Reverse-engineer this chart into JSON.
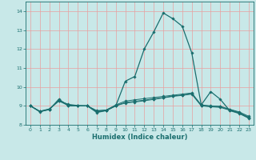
{
  "xlabel": "Humidex (Indice chaleur)",
  "background_color": "#c8e8e8",
  "line_color": "#1a6e6e",
  "grid_color": "#e8a0a0",
  "xlim": [
    -0.5,
    23.5
  ],
  "ylim": [
    8.0,
    14.5
  ],
  "yticks": [
    8,
    9,
    10,
    11,
    12,
    13,
    14
  ],
  "xticks": [
    0,
    1,
    2,
    3,
    4,
    5,
    6,
    7,
    8,
    9,
    10,
    11,
    12,
    13,
    14,
    15,
    16,
    17,
    18,
    19,
    20,
    21,
    22,
    23
  ],
  "line1_x": [
    0,
    1,
    2,
    3,
    4,
    5,
    6,
    7,
    8,
    9,
    10,
    11,
    12,
    13,
    14,
    15,
    16,
    17,
    18,
    19,
    20,
    21,
    22,
    23
  ],
  "line1_y": [
    9.0,
    8.7,
    8.8,
    9.35,
    9.0,
    9.0,
    9.0,
    8.65,
    8.75,
    9.0,
    10.3,
    10.55,
    12.0,
    12.9,
    13.9,
    13.6,
    13.2,
    11.8,
    9.05,
    9.75,
    9.35,
    8.75,
    8.6,
    8.35
  ],
  "line2_x": [
    0,
    1,
    2,
    3,
    4,
    5,
    6,
    7,
    8,
    9,
    10,
    11,
    12,
    13,
    14,
    15,
    16,
    17,
    18,
    19,
    20,
    21,
    22,
    23
  ],
  "line2_y": [
    9.0,
    8.7,
    8.82,
    9.3,
    9.05,
    9.0,
    9.0,
    8.75,
    8.78,
    9.05,
    9.25,
    9.32,
    9.38,
    9.44,
    9.5,
    9.56,
    9.62,
    9.68,
    9.05,
    9.0,
    8.98,
    8.82,
    8.68,
    8.45
  ],
  "line3_x": [
    0,
    1,
    2,
    3,
    4,
    5,
    6,
    7,
    8,
    9,
    10,
    11,
    12,
    13,
    14,
    15,
    16,
    17,
    18,
    19,
    20,
    21,
    22,
    23
  ],
  "line3_y": [
    9.0,
    8.72,
    8.84,
    9.28,
    9.08,
    9.02,
    9.0,
    8.72,
    8.78,
    9.02,
    9.18,
    9.24,
    9.3,
    9.37,
    9.44,
    9.52,
    9.58,
    9.65,
    9.02,
    8.98,
    8.95,
    8.8,
    8.65,
    8.4
  ],
  "line4_x": [
    0,
    1,
    2,
    3,
    4,
    5,
    6,
    7,
    8,
    9,
    10,
    11,
    12,
    13,
    14,
    15,
    16,
    17,
    18,
    19,
    20,
    21,
    22,
    23
  ],
  "line4_y": [
    9.0,
    8.68,
    8.82,
    9.25,
    9.02,
    9.0,
    9.0,
    8.68,
    8.75,
    9.0,
    9.15,
    9.2,
    9.27,
    9.34,
    9.42,
    9.5,
    9.55,
    9.62,
    9.0,
    8.95,
    8.92,
    8.77,
    8.62,
    8.37
  ]
}
